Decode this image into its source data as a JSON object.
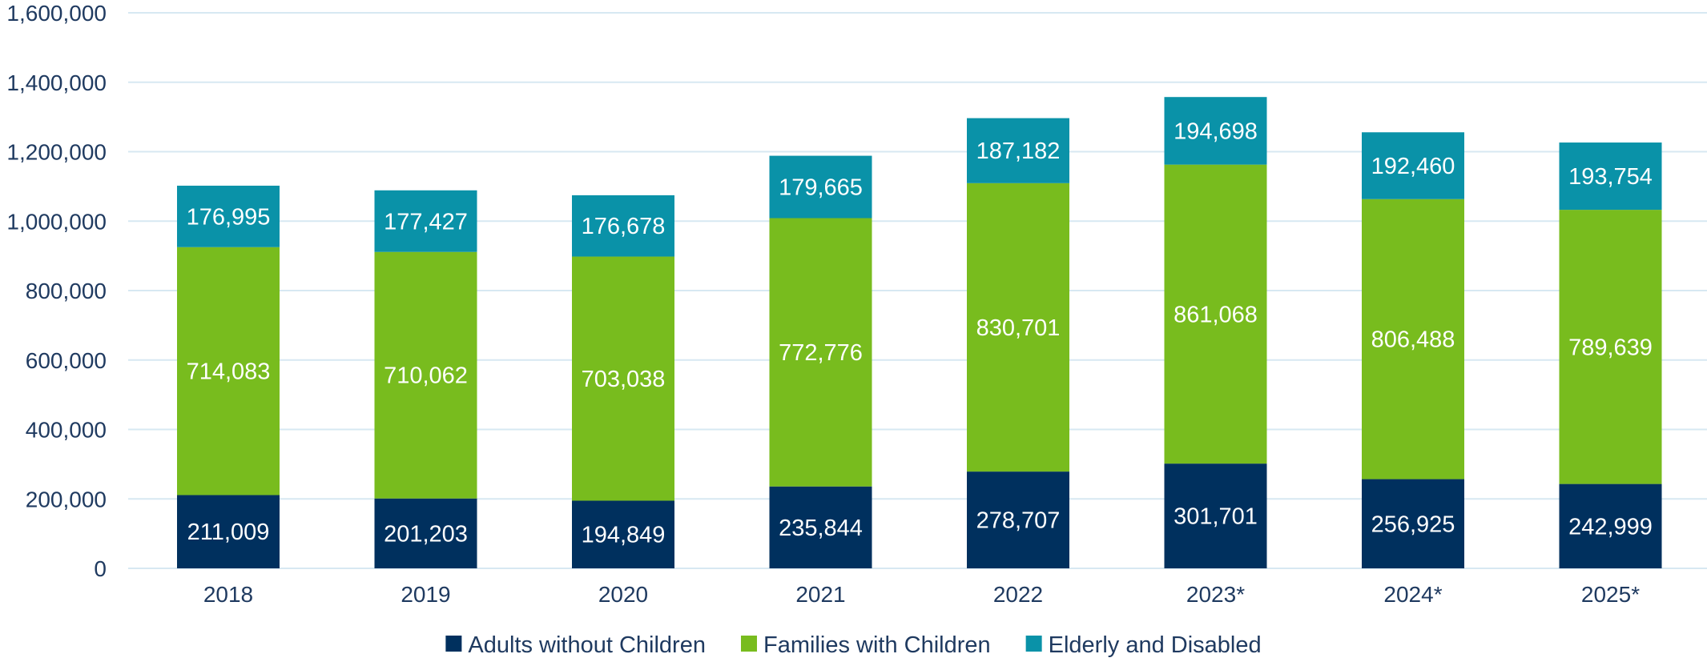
{
  "colors": {
    "adults_without_children": "#00305e",
    "families_with_children": "#78bc1e",
    "elderly_and_disabled": "#0a92a8",
    "text": "#1f3a60",
    "grid": "#d7e8f2"
  },
  "chart_data": {
    "type": "bar",
    "stacked": true,
    "categories": [
      "2018",
      "2019",
      "2020",
      "2021",
      "2022",
      "2023*",
      "2024*",
      "2025*"
    ],
    "series": [
      {
        "name": "Adults without Children",
        "color_key": "adults_without_children",
        "values": [
          211009,
          201203,
          194849,
          235844,
          278707,
          301701,
          256925,
          242999
        ],
        "labels": [
          "211,009",
          "201,203",
          "194,849",
          "235,844",
          "278,707",
          "301,701",
          "256,925",
          "242,999"
        ]
      },
      {
        "name": "Families with Children",
        "color_key": "families_with_children",
        "values": [
          714083,
          710062,
          703038,
          772776,
          830701,
          861068,
          806488,
          789639
        ],
        "labels": [
          "714,083",
          "710,062",
          "703,038",
          "772,776",
          "830,701",
          "861,068",
          "806,488",
          "789,639"
        ]
      },
      {
        "name": "Elderly and Disabled",
        "color_key": "elderly_and_disabled",
        "values": [
          176995,
          177427,
          176678,
          179665,
          187182,
          194698,
          192460,
          193754
        ],
        "labels": [
          "176,995",
          "177,427",
          "176,678",
          "179,665",
          "187,182",
          "194,698",
          "192,460",
          "193,754"
        ]
      }
    ],
    "y_ticks": [
      0,
      200000,
      400000,
      600000,
      800000,
      1000000,
      1200000,
      1400000,
      1600000
    ],
    "y_tick_labels": [
      "0",
      "200,000",
      "400,000",
      "600,000",
      "800,000",
      "1,000,000",
      "1,200,000",
      "1,400,000",
      "1,600,000"
    ],
    "ylim": [
      0,
      1600000
    ],
    "grid": true,
    "legend_position": "bottom",
    "title": "",
    "xlabel": "",
    "ylabel": ""
  }
}
